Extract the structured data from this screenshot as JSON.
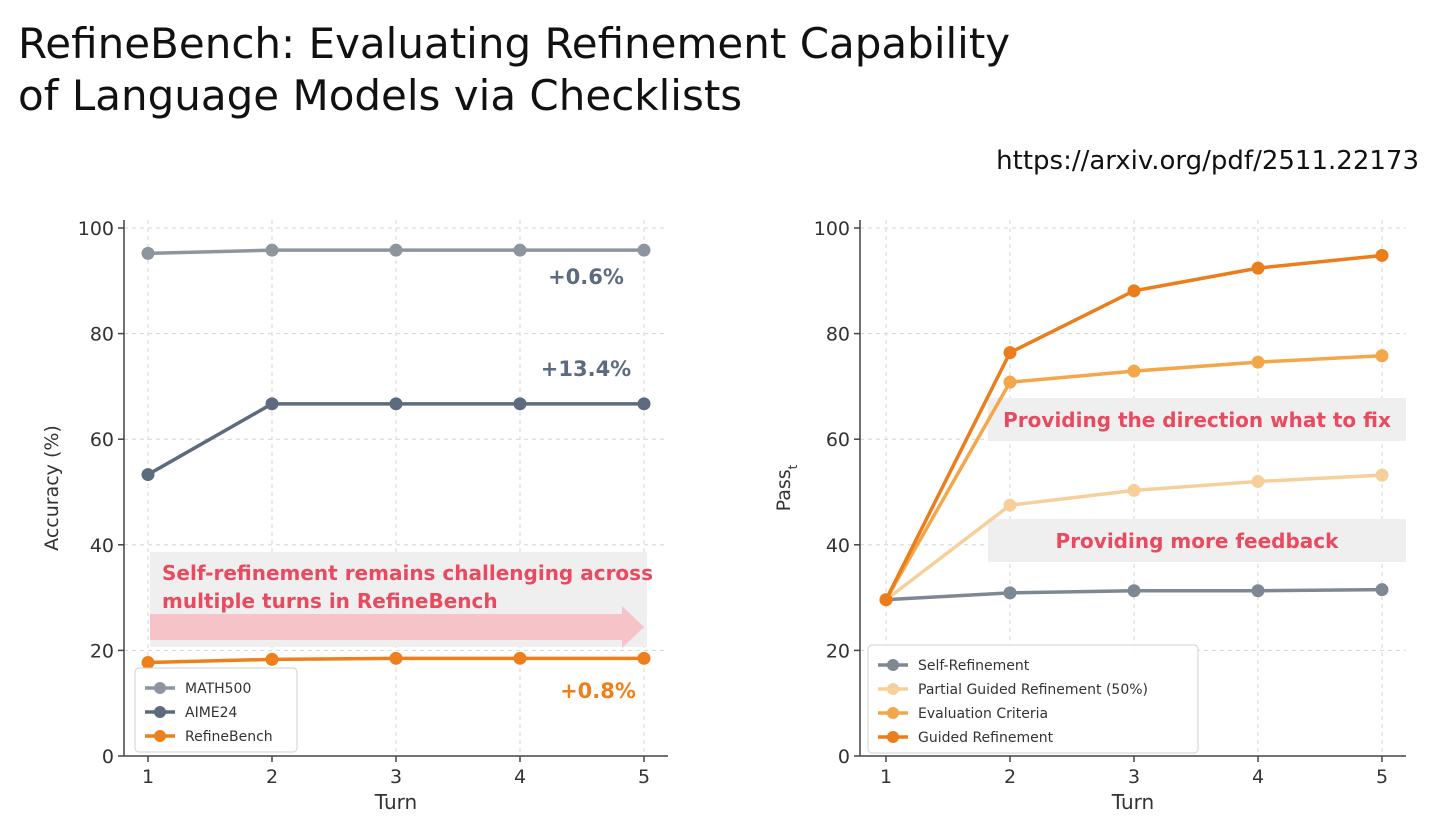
{
  "title_line1": "RefineBench: Evaluating Refinement Capability",
  "title_line2": "of Language Models via Checklists",
  "url": "https://arxiv.org/pdf/2511.22173",
  "chart_data": [
    {
      "type": "line",
      "x": [
        1,
        2,
        3,
        4,
        5
      ],
      "xlabel": "Turn",
      "ylabel": "Accuracy (%)",
      "ylim": [
        0,
        100
      ],
      "yticks": [
        0,
        20,
        40,
        60,
        80,
        100
      ],
      "grid": true,
      "legend_position": "bottom-left",
      "series": [
        {
          "name": "MATH500",
          "color": "#8d959e",
          "values": [
            95.2,
            95.8,
            95.8,
            95.8,
            95.8
          ]
        },
        {
          "name": "AIME24",
          "color": "#5c6b7d",
          "values": [
            53.3,
            66.7,
            66.7,
            66.7,
            66.7
          ]
        },
        {
          "name": "RefineBench",
          "color": "#ef7f1a",
          "values": [
            17.7,
            18.3,
            18.5,
            18.5,
            18.5
          ]
        }
      ],
      "annotations": [
        {
          "text": "+0.6%",
          "color": "#5c6b7d"
        },
        {
          "text": "+13.4%",
          "color": "#5c6b7d"
        },
        {
          "text": "+0.8%",
          "color": "#ef7f1a"
        },
        {
          "text_lines": [
            "Self-refinement remains challenging across",
            "multiple turns in RefineBench"
          ],
          "color": "#e84a5f"
        }
      ]
    },
    {
      "type": "line",
      "x": [
        1,
        2,
        3,
        4,
        5
      ],
      "xlabel": "Turn",
      "ylabel": "Pass",
      "ylabel_subscript": "t",
      "ylim": [
        0,
        100
      ],
      "yticks": [
        0,
        20,
        40,
        60,
        80,
        100
      ],
      "grid": true,
      "legend_position": "bottom-left",
      "series": [
        {
          "name": "Self-Refinement",
          "color": "#7e8893",
          "values": [
            29.6,
            30.9,
            31.3,
            31.3,
            31.5
          ]
        },
        {
          "name": "Partial Guided Refinement (50%)",
          "color": "#f7cf9a",
          "values": [
            29.6,
            47.5,
            50.3,
            52.0,
            53.2
          ]
        },
        {
          "name": "Evaluation Criteria",
          "color": "#f3a64a",
          "values": [
            29.6,
            70.8,
            72.9,
            74.6,
            75.8
          ]
        },
        {
          "name": "Guided Refinement",
          "color": "#ea7d1c",
          "values": [
            29.6,
            76.4,
            88.1,
            92.4,
            94.8
          ]
        }
      ],
      "annotations": [
        {
          "text": "Providing the direction what to fix",
          "color": "#e84a5f"
        },
        {
          "text": "Providing more feedback",
          "color": "#e84a5f"
        }
      ]
    }
  ]
}
